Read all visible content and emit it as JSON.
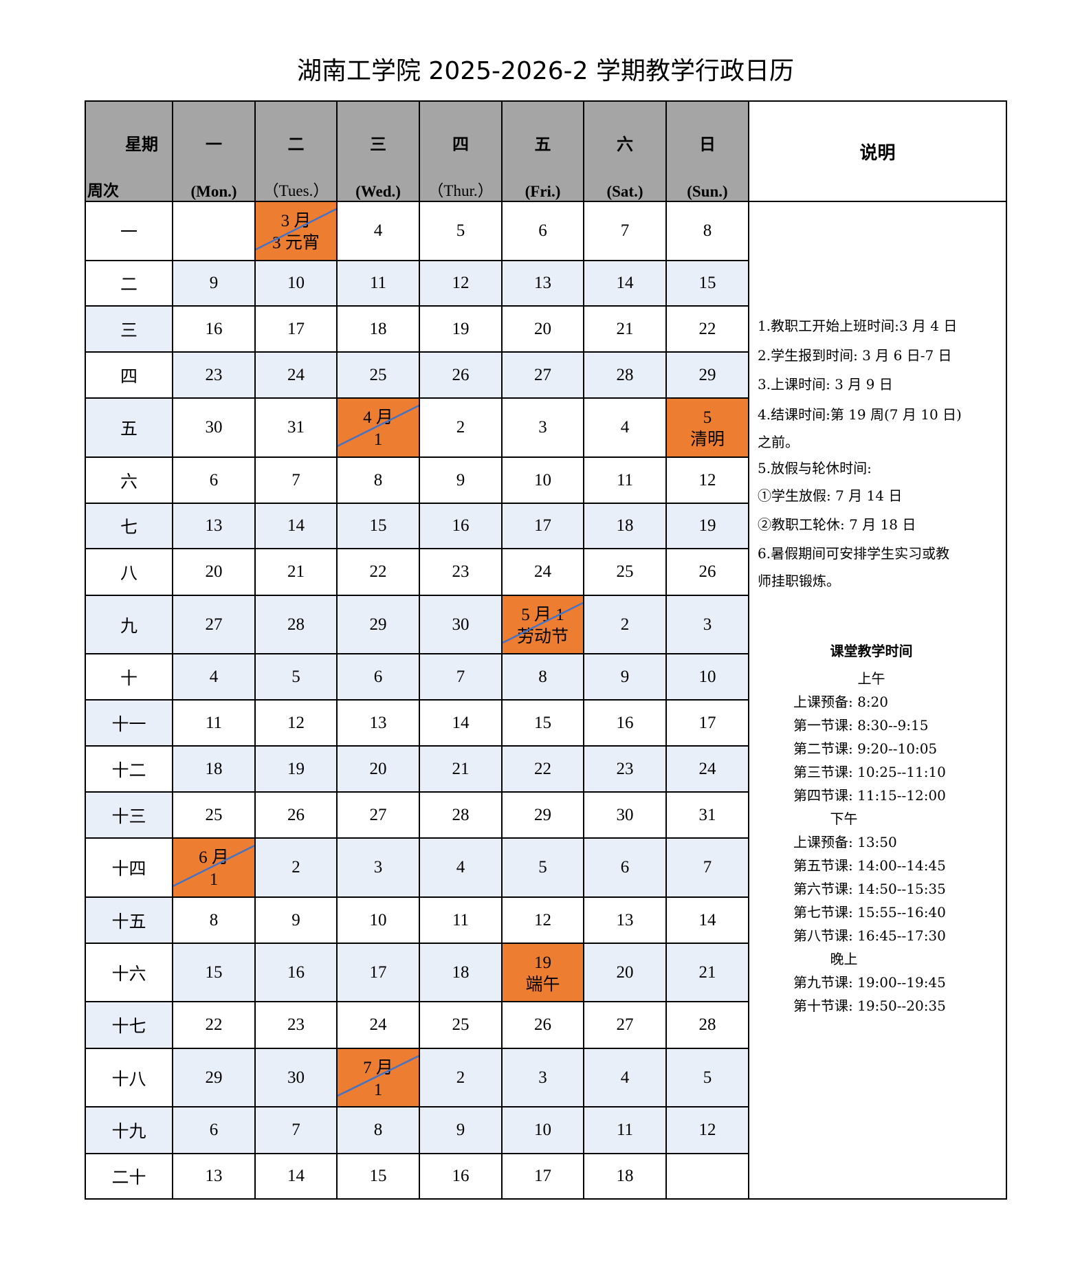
{
  "title": "湖南工学院 2025-2026-2 学期教学行政日历",
  "header": {
    "corner_top": "星期",
    "corner_bottom": "周次",
    "days": [
      {
        "cn": "一",
        "en": "(Mon.)"
      },
      {
        "cn": "二",
        "en": "（Tues.）"
      },
      {
        "cn": "三",
        "en": "(Wed.)"
      },
      {
        "cn": "四",
        "en": "（Thur.）"
      },
      {
        "cn": "五",
        "en": "(Fri.)"
      },
      {
        "cn": "六",
        "en": "(Sat.)"
      },
      {
        "cn": "日",
        "en": "(Sun.)"
      }
    ],
    "description": "说明"
  },
  "weeks": [
    {
      "label": "一",
      "days": [
        "",
        {
          "top": "3 月",
          "bottom": "3 元宵",
          "highlight": true,
          "diagonal": true
        },
        "4",
        "5",
        "6",
        "7",
        "8"
      ]
    },
    {
      "label": "二",
      "days": [
        "9",
        "10",
        "11",
        "12",
        "13",
        "14",
        "15"
      ]
    },
    {
      "label": "三",
      "days": [
        "16",
        "17",
        "18",
        "19",
        "20",
        "21",
        "22"
      ]
    },
    {
      "label": "四",
      "days": [
        "23",
        "24",
        "25",
        "26",
        "27",
        "28",
        "29"
      ]
    },
    {
      "label": "五",
      "days": [
        "30",
        "31",
        {
          "top": "4 月",
          "bottom": "1",
          "highlight": true,
          "diagonal": true
        },
        "2",
        "3",
        "4",
        {
          "top": "5",
          "bottom": "清明",
          "highlight": true,
          "diagonal": false
        }
      ]
    },
    {
      "label": "六",
      "days": [
        "6",
        "7",
        "8",
        "9",
        "10",
        "11",
        "12"
      ]
    },
    {
      "label": "七",
      "days": [
        "13",
        "14",
        "15",
        "16",
        "17",
        "18",
        "19"
      ]
    },
    {
      "label": "八",
      "days": [
        "20",
        "21",
        "22",
        "23",
        "24",
        "25",
        "26"
      ]
    },
    {
      "label": "九",
      "days": [
        "27",
        "28",
        "29",
        "30",
        {
          "top": "5 月 1",
          "bottom": "劳动节",
          "highlight": true,
          "diagonal": true
        },
        "2",
        "3"
      ]
    },
    {
      "label": "十",
      "days": [
        "4",
        "5",
        "6",
        "7",
        "8",
        "9",
        "10"
      ]
    },
    {
      "label": "十一",
      "days": [
        "11",
        "12",
        "13",
        "14",
        "15",
        "16",
        "17"
      ]
    },
    {
      "label": "十二",
      "days": [
        "18",
        "19",
        "20",
        "21",
        "22",
        "23",
        "24"
      ]
    },
    {
      "label": "十三",
      "days": [
        "25",
        "26",
        "27",
        "28",
        "29",
        "30",
        "31"
      ]
    },
    {
      "label": "十四",
      "days": [
        {
          "top": "6 月",
          "bottom": "1",
          "highlight": true,
          "diagonal": true
        },
        "2",
        "3",
        "4",
        "5",
        "6",
        "7"
      ]
    },
    {
      "label": "十五",
      "days": [
        "8",
        "9",
        "10",
        "11",
        "12",
        "13",
        "14"
      ]
    },
    {
      "label": "十六",
      "days": [
        "15",
        "16",
        "17",
        "18",
        {
          "top": "19",
          "bottom": "端午",
          "highlight": true,
          "diagonal": false
        },
        "20",
        "21"
      ]
    },
    {
      "label": "十七",
      "days": [
        "22",
        "23",
        "24",
        "25",
        "26",
        "27",
        "28"
      ]
    },
    {
      "label": "十八",
      "days": [
        "29",
        "30",
        {
          "top": "7 月",
          "bottom": "1",
          "highlight": true,
          "diagonal": true
        },
        "2",
        "3",
        "4",
        "5"
      ]
    },
    {
      "label": "十九",
      "days": [
        "6",
        "7",
        "8",
        "9",
        "10",
        "11",
        "12"
      ]
    },
    {
      "label": "二十",
      "days": [
        "13",
        "14",
        "15",
        "16",
        "17",
        "18",
        ""
      ]
    }
  ],
  "notes": [
    "1.教职工开始上班时间:3 月 4 日",
    "2.学生报到时间: 3 月 6 日-7 日",
    "3.上课时间: 3 月 9 日",
    "4.结课时间:第 19 周(7 月 10 日)",
    "之前。",
    "5.放假与轮休时间:",
    "①学生放假: 7 月 14 日",
    "②教职工轮休: 7 月 18 日",
    "6.暑假期间可安排学生实习或教",
    "师挂职锻炼。"
  ],
  "schedule": {
    "title": "课堂教学时间",
    "sections": [
      {
        "name": "上午",
        "items": [
          "上课预备: 8:20",
          "第一节课: 8:30--9:15",
          "第二节课: 9:20--10:05",
          "第三节课: 10:25--11:10",
          "第四节课: 11:15--12:00"
        ]
      },
      {
        "name": "下午",
        "items": [
          "上课预备: 13:50",
          "第五节课: 14:00--14:45",
          "第六节课: 14:50--15:35",
          "第七节课: 15:55--16:40",
          "第八节课: 16:45--17:30"
        ]
      },
      {
        "name": "晚上",
        "items": [
          "第九节课: 19:00--19:45",
          "第十节课: 19:50--20:35"
        ]
      }
    ]
  },
  "colors": {
    "header": "#a5a5a5",
    "highlight": "#ed7d31",
    "shade": "#e9eff8",
    "diagonal": "#4472c4"
  }
}
